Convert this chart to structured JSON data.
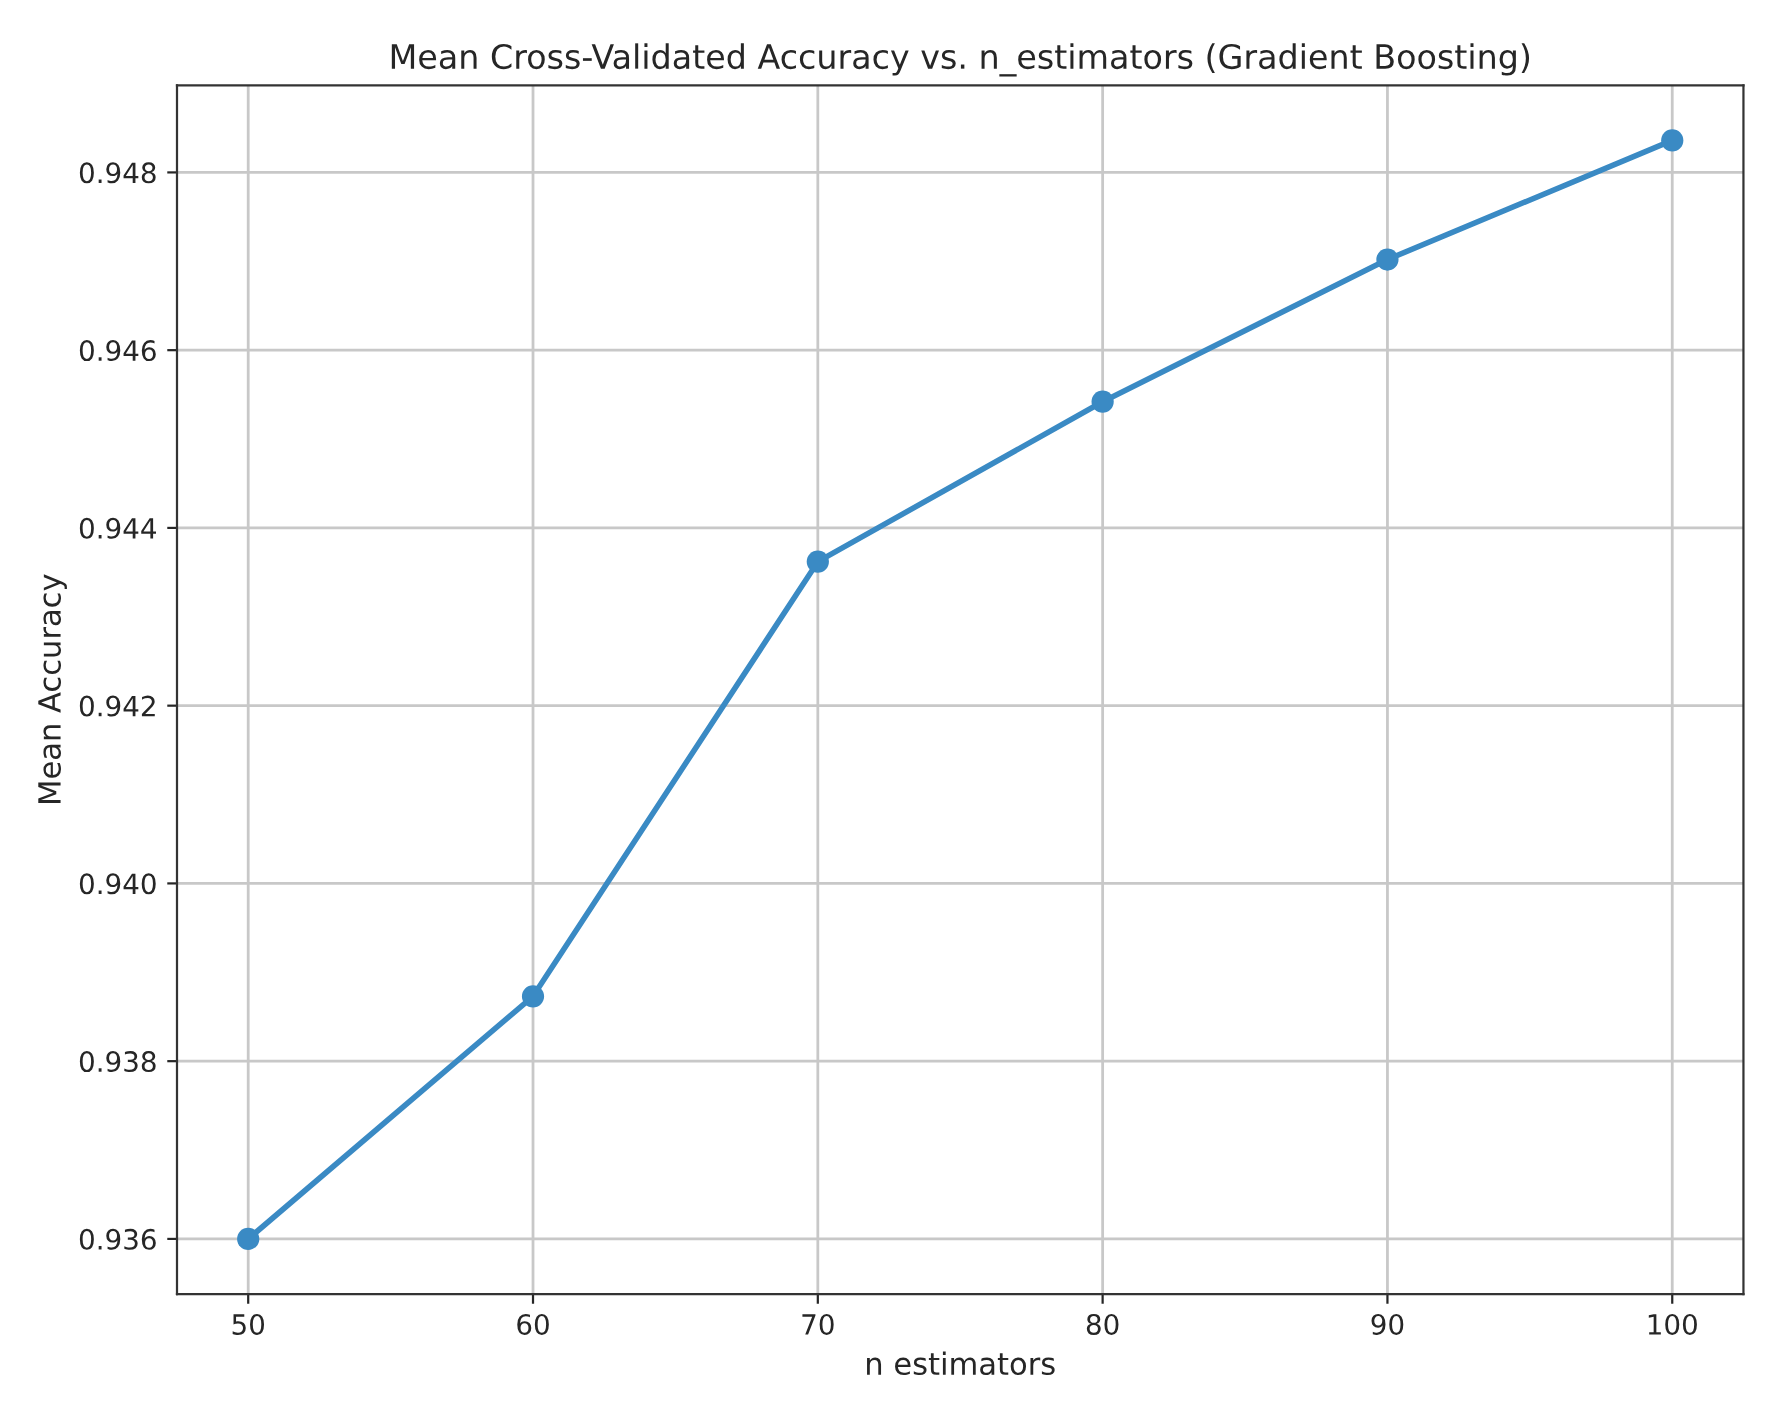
{
  "chart_data": {
    "type": "line",
    "title": "Mean Cross-Validated Accuracy vs. n_estimators (Gradient Boosting)",
    "xlabel": "n estimators",
    "ylabel": "Mean Accuracy",
    "x": [
      50,
      60,
      70,
      80,
      90,
      100
    ],
    "series": [
      {
        "color": "#3a8ac4",
        "values": [
          0.936,
          0.93873,
          0.94362,
          0.94542,
          0.94702,
          0.94836
        ]
      }
    ],
    "xlim": [
      47.5,
      102.5
    ],
    "xticks": [
      50,
      60,
      70,
      80,
      90,
      100
    ],
    "ylim": [
      0.93538,
      0.94898
    ],
    "yticks": [
      {
        "value": 0.936,
        "label": "0.936"
      },
      {
        "value": 0.938,
        "label": "0.938"
      },
      {
        "value": 0.94,
        "label": "0.940"
      },
      {
        "value": 0.942,
        "label": "0.942"
      },
      {
        "value": 0.944,
        "label": "0.944"
      },
      {
        "value": 0.946,
        "label": "0.946"
      },
      {
        "value": 0.948,
        "label": "0.948"
      }
    ],
    "grid": true,
    "marker": "circle",
    "line_style": "solid"
  }
}
